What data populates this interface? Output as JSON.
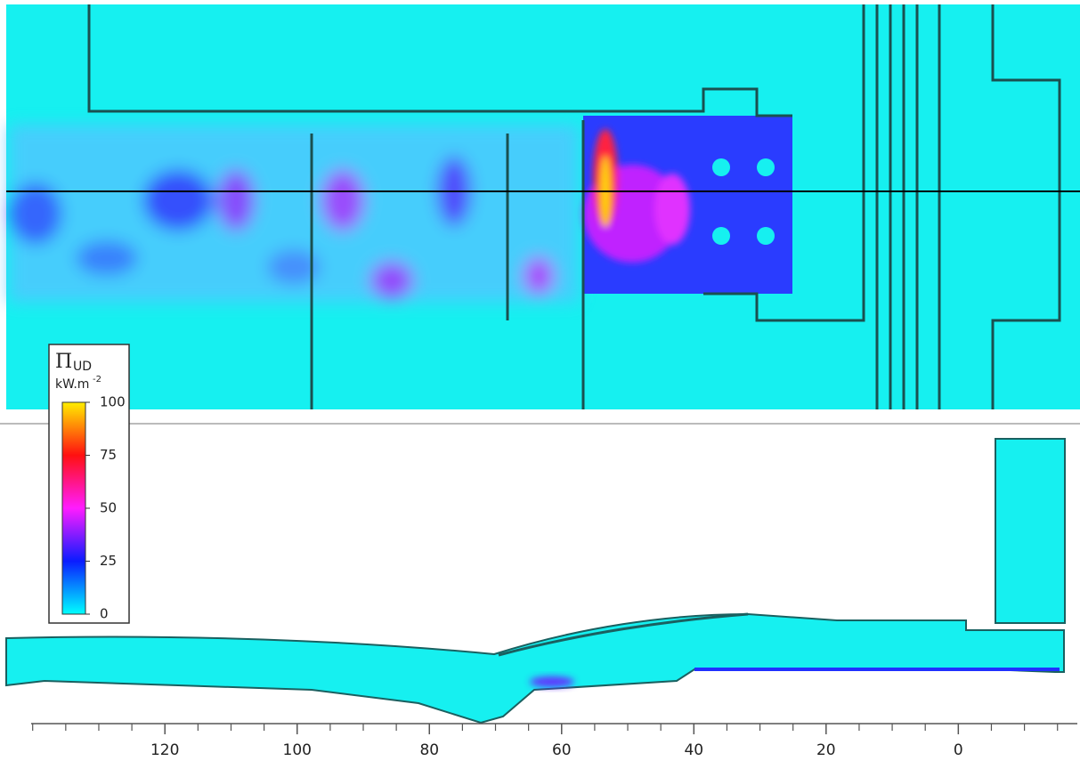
{
  "chart_data": {
    "type": "heatmap",
    "xlim": [
      144,
      -18
    ],
    "xticks": [
      120,
      100,
      80,
      60,
      40,
      20,
      0
    ],
    "xminor_ticks": [
      140,
      135,
      130,
      125,
      115,
      110,
      105,
      95,
      90,
      85,
      75,
      70,
      65,
      55,
      50,
      45,
      35,
      30,
      25,
      15,
      10,
      5,
      -5,
      -10,
      -15
    ],
    "colorbar": {
      "title": "Π",
      "title_sub": "UD",
      "unit": "kW.m",
      "unit_sup": "-2",
      "ylim": [
        0,
        100
      ],
      "ticks": [
        0,
        25,
        50,
        75,
        100
      ],
      "colorscale": [
        {
          "value": 0,
          "color": "#00ffff"
        },
        {
          "value": 25,
          "color": "#0a1cff"
        },
        {
          "value": 50,
          "color": "#ff1cff"
        },
        {
          "value": 75,
          "color": "#ff1010"
        },
        {
          "value": 100,
          "color": "#ffee00"
        }
      ]
    }
  }
}
